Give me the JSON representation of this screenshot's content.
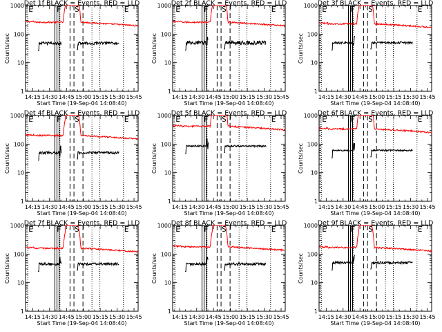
{
  "panels": [
    {
      "title": "Det 1f BLACK = Events, RED = LLD",
      "red_level": 260,
      "black_level": 48,
      "black_noise": 0.11
    },
    {
      "title": "Det 2f BLACK = Events, RED = LLD",
      "red_level": 260,
      "black_level": 50,
      "black_noise": 0.16
    },
    {
      "title": "Det 3f BLACK = Events, RED = LLD",
      "red_level": 230,
      "black_level": 50,
      "black_noise": 0.09
    },
    {
      "title": "Det 4f BLACK = Events, RED = LLD",
      "red_level": 200,
      "black_level": 50,
      "black_noise": 0.1
    },
    {
      "title": "Det 5f BLACK = Events, RED = LLD",
      "red_level": 420,
      "black_level": 85,
      "black_noise": 0.07
    },
    {
      "title": "Det 6f BLACK = Events, RED = LLD",
      "red_level": 340,
      "black_level": 60,
      "black_noise": 0.06
    },
    {
      "title": "Det 7f BLACK = Events, RED = LLD",
      "red_level": 160,
      "black_level": 45,
      "black_noise": 0.1
    },
    {
      "title": "Det 8f BLACK = Events, RED = LLD",
      "red_level": 180,
      "black_level": 45,
      "black_noise": 0.11
    },
    {
      "title": "Det 9f BLACK = Events, RED = LLD",
      "red_level": 170,
      "black_level": 50,
      "black_noise": 0.1
    }
  ],
  "chart_data": {
    "type": "line",
    "grid": "3x3",
    "ylabel": "Counts/sec",
    "xlabel": "Start Time (19-Sep-04 14:08:40)",
    "yscale": "log",
    "ylim": [
      1,
      1000
    ],
    "y_ticks": [
      "1",
      "10",
      "100",
      "1000"
    ],
    "x_range_min": [
      0,
      100
    ],
    "x_tick_labels": [
      "14:15",
      "14:30",
      "14:45",
      "15:00",
      "15:15",
      "15:30",
      "15:45"
    ],
    "x_tick_minutes": [
      6.33,
      21.33,
      36.33,
      51.33,
      66.33,
      81.33,
      96.33
    ],
    "series": [
      {
        "name": "Events",
        "color": "#000000",
        "segments_min": [
          [
            11,
            32
          ],
          [
            45.5,
            83
          ]
        ]
      },
      {
        "name": "LLD",
        "color": "#ff0000",
        "segments_min": [
          [
            0,
            100
          ]
        ],
        "gap_peaks_min": [
          38,
          47
        ]
      }
    ],
    "markers": [
      {
        "label": "E",
        "minute": 2,
        "style": "dotted"
      },
      {
        "label": "F",
        "minute": 27,
        "style": "double-solid"
      },
      {
        "label": "S",
        "minute": 43,
        "style": "dashed"
      },
      {
        "label": "",
        "minute": 39.5,
        "style": "dashed"
      },
      {
        "label": "",
        "minute": 30.5,
        "style": "dotted"
      },
      {
        "label": "",
        "minute": 51,
        "style": "dashed"
      },
      {
        "label": "",
        "minute": 59,
        "style": "dotted"
      },
      {
        "label": "",
        "minute": 66,
        "style": "dotted"
      },
      {
        "label": "E",
        "minute": 87,
        "style": "dotted"
      }
    ]
  }
}
